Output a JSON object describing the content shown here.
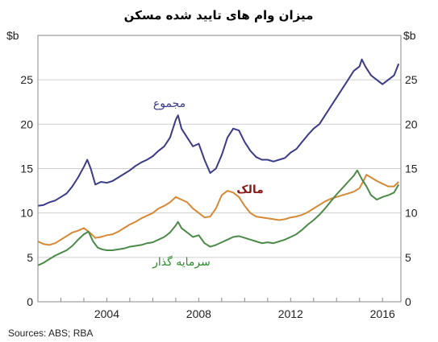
{
  "chart_data": {
    "type": "line",
    "title": "میزان وام های تایید شده مسکن",
    "unit_left": "$b",
    "unit_right": "$b",
    "source": "Sources:  ABS; RBA",
    "xlim": [
      2001.0,
      2016.8
    ],
    "ylim": [
      0,
      30
    ],
    "x_ticks": [
      2004,
      2008,
      2012,
      2016
    ],
    "y_ticks": [
      0,
      5,
      10,
      15,
      20,
      25
    ],
    "grid": "horizontal",
    "series": [
      {
        "name": "مجموع",
        "color": "#3b3b87",
        "points": [
          [
            2001.0,
            10.8
          ],
          [
            2001.25,
            10.9
          ],
          [
            2001.5,
            11.2
          ],
          [
            2001.75,
            11.4
          ],
          [
            2002.0,
            11.8
          ],
          [
            2002.25,
            12.2
          ],
          [
            2002.5,
            13.0
          ],
          [
            2002.75,
            14.0
          ],
          [
            2003.0,
            15.2
          ],
          [
            2003.15,
            16.0
          ],
          [
            2003.3,
            15.0
          ],
          [
            2003.5,
            13.2
          ],
          [
            2003.75,
            13.5
          ],
          [
            2004.0,
            13.4
          ],
          [
            2004.25,
            13.6
          ],
          [
            2004.5,
            14.0
          ],
          [
            2004.75,
            14.4
          ],
          [
            2005.0,
            14.8
          ],
          [
            2005.25,
            15.3
          ],
          [
            2005.5,
            15.7
          ],
          [
            2005.75,
            16.0
          ],
          [
            2006.0,
            16.4
          ],
          [
            2006.25,
            17.0
          ],
          [
            2006.5,
            17.5
          ],
          [
            2006.75,
            18.5
          ],
          [
            2007.0,
            20.5
          ],
          [
            2007.1,
            21.0
          ],
          [
            2007.25,
            19.5
          ],
          [
            2007.5,
            18.5
          ],
          [
            2007.75,
            17.5
          ],
          [
            2008.0,
            17.8
          ],
          [
            2008.25,
            16.0
          ],
          [
            2008.5,
            14.5
          ],
          [
            2008.75,
            15.0
          ],
          [
            2009.0,
            16.5
          ],
          [
            2009.25,
            18.5
          ],
          [
            2009.5,
            19.5
          ],
          [
            2009.75,
            19.3
          ],
          [
            2010.0,
            18.0
          ],
          [
            2010.25,
            17.0
          ],
          [
            2010.5,
            16.3
          ],
          [
            2010.75,
            16.0
          ],
          [
            2011.0,
            16.0
          ],
          [
            2011.25,
            15.8
          ],
          [
            2011.5,
            16.0
          ],
          [
            2011.75,
            16.2
          ],
          [
            2012.0,
            16.8
          ],
          [
            2012.25,
            17.2
          ],
          [
            2012.5,
            18.0
          ],
          [
            2012.75,
            18.8
          ],
          [
            2013.0,
            19.5
          ],
          [
            2013.25,
            20.0
          ],
          [
            2013.5,
            21.0
          ],
          [
            2013.75,
            22.0
          ],
          [
            2014.0,
            23.0
          ],
          [
            2014.25,
            24.0
          ],
          [
            2014.5,
            25.0
          ],
          [
            2014.75,
            26.0
          ],
          [
            2015.0,
            26.5
          ],
          [
            2015.1,
            27.3
          ],
          [
            2015.25,
            26.5
          ],
          [
            2015.5,
            25.5
          ],
          [
            2015.75,
            25.0
          ],
          [
            2016.0,
            24.5
          ],
          [
            2016.25,
            25.0
          ],
          [
            2016.5,
            25.5
          ],
          [
            2016.7,
            26.8
          ]
        ]
      },
      {
        "name": "مالک",
        "color": "#d58936",
        "points": [
          [
            2001.0,
            6.8
          ],
          [
            2001.25,
            6.5
          ],
          [
            2001.5,
            6.4
          ],
          [
            2001.75,
            6.6
          ],
          [
            2002.0,
            7.0
          ],
          [
            2002.25,
            7.4
          ],
          [
            2002.5,
            7.8
          ],
          [
            2002.75,
            8.0
          ],
          [
            2003.0,
            8.3
          ],
          [
            2003.25,
            7.8
          ],
          [
            2003.5,
            7.2
          ],
          [
            2003.75,
            7.3
          ],
          [
            2004.0,
            7.5
          ],
          [
            2004.25,
            7.6
          ],
          [
            2004.5,
            7.9
          ],
          [
            2004.75,
            8.3
          ],
          [
            2005.0,
            8.7
          ],
          [
            2005.25,
            9.0
          ],
          [
            2005.5,
            9.4
          ],
          [
            2005.75,
            9.7
          ],
          [
            2006.0,
            10.0
          ],
          [
            2006.25,
            10.5
          ],
          [
            2006.5,
            10.8
          ],
          [
            2006.75,
            11.2
          ],
          [
            2007.0,
            11.8
          ],
          [
            2007.25,
            11.5
          ],
          [
            2007.5,
            11.2
          ],
          [
            2007.75,
            10.5
          ],
          [
            2008.0,
            10.0
          ],
          [
            2008.25,
            9.5
          ],
          [
            2008.5,
            9.6
          ],
          [
            2008.75,
            10.5
          ],
          [
            2009.0,
            12.0
          ],
          [
            2009.25,
            12.5
          ],
          [
            2009.5,
            12.3
          ],
          [
            2009.75,
            11.8
          ],
          [
            2010.0,
            10.8
          ],
          [
            2010.25,
            10.0
          ],
          [
            2010.5,
            9.6
          ],
          [
            2010.75,
            9.5
          ],
          [
            2011.0,
            9.4
          ],
          [
            2011.25,
            9.3
          ],
          [
            2011.5,
            9.2
          ],
          [
            2011.75,
            9.3
          ],
          [
            2012.0,
            9.5
          ],
          [
            2012.25,
            9.6
          ],
          [
            2012.5,
            9.8
          ],
          [
            2012.75,
            10.1
          ],
          [
            2013.0,
            10.5
          ],
          [
            2013.25,
            10.9
          ],
          [
            2013.5,
            11.3
          ],
          [
            2013.75,
            11.6
          ],
          [
            2014.0,
            11.8
          ],
          [
            2014.25,
            12.0
          ],
          [
            2014.5,
            12.2
          ],
          [
            2014.75,
            12.4
          ],
          [
            2015.0,
            12.8
          ],
          [
            2015.15,
            13.5
          ],
          [
            2015.3,
            14.3
          ],
          [
            2015.5,
            14.0
          ],
          [
            2015.75,
            13.6
          ],
          [
            2016.0,
            13.3
          ],
          [
            2016.25,
            13.0
          ],
          [
            2016.5,
            13.0
          ],
          [
            2016.7,
            13.5
          ]
        ]
      },
      {
        "name": "سرمایه گذار",
        "color": "#4b8a47",
        "points": [
          [
            2001.0,
            4.1
          ],
          [
            2001.25,
            4.4
          ],
          [
            2001.5,
            4.8
          ],
          [
            2001.75,
            5.2
          ],
          [
            2002.0,
            5.5
          ],
          [
            2002.25,
            5.8
          ],
          [
            2002.5,
            6.3
          ],
          [
            2002.75,
            7.0
          ],
          [
            2003.0,
            7.6
          ],
          [
            2003.2,
            7.9
          ],
          [
            2003.4,
            6.8
          ],
          [
            2003.6,
            6.1
          ],
          [
            2003.8,
            5.9
          ],
          [
            2004.0,
            5.8
          ],
          [
            2004.25,
            5.8
          ],
          [
            2004.5,
            5.9
          ],
          [
            2004.75,
            6.0
          ],
          [
            2005.0,
            6.2
          ],
          [
            2005.25,
            6.3
          ],
          [
            2005.5,
            6.4
          ],
          [
            2005.75,
            6.6
          ],
          [
            2006.0,
            6.7
          ],
          [
            2006.25,
            7.0
          ],
          [
            2006.5,
            7.3
          ],
          [
            2006.75,
            7.8
          ],
          [
            2007.0,
            8.6
          ],
          [
            2007.1,
            9.0
          ],
          [
            2007.25,
            8.3
          ],
          [
            2007.5,
            7.8
          ],
          [
            2007.75,
            7.3
          ],
          [
            2008.0,
            7.5
          ],
          [
            2008.25,
            6.6
          ],
          [
            2008.5,
            6.2
          ],
          [
            2008.75,
            6.4
          ],
          [
            2009.0,
            6.7
          ],
          [
            2009.25,
            7.0
          ],
          [
            2009.5,
            7.3
          ],
          [
            2009.75,
            7.4
          ],
          [
            2010.0,
            7.2
          ],
          [
            2010.25,
            7.0
          ],
          [
            2010.5,
            6.8
          ],
          [
            2010.75,
            6.6
          ],
          [
            2011.0,
            6.7
          ],
          [
            2011.25,
            6.6
          ],
          [
            2011.5,
            6.8
          ],
          [
            2011.75,
            7.0
          ],
          [
            2012.0,
            7.3
          ],
          [
            2012.25,
            7.6
          ],
          [
            2012.5,
            8.1
          ],
          [
            2012.75,
            8.7
          ],
          [
            2013.0,
            9.2
          ],
          [
            2013.25,
            9.8
          ],
          [
            2013.5,
            10.5
          ],
          [
            2013.75,
            11.3
          ],
          [
            2014.0,
            12.1
          ],
          [
            2014.25,
            12.8
          ],
          [
            2014.5,
            13.5
          ],
          [
            2014.75,
            14.2
          ],
          [
            2014.9,
            14.8
          ],
          [
            2015.1,
            13.8
          ],
          [
            2015.3,
            13.0
          ],
          [
            2015.5,
            12.0
          ],
          [
            2015.75,
            11.5
          ],
          [
            2016.0,
            11.8
          ],
          [
            2016.25,
            12.0
          ],
          [
            2016.5,
            12.3
          ],
          [
            2016.7,
            13.2
          ]
        ]
      }
    ]
  }
}
